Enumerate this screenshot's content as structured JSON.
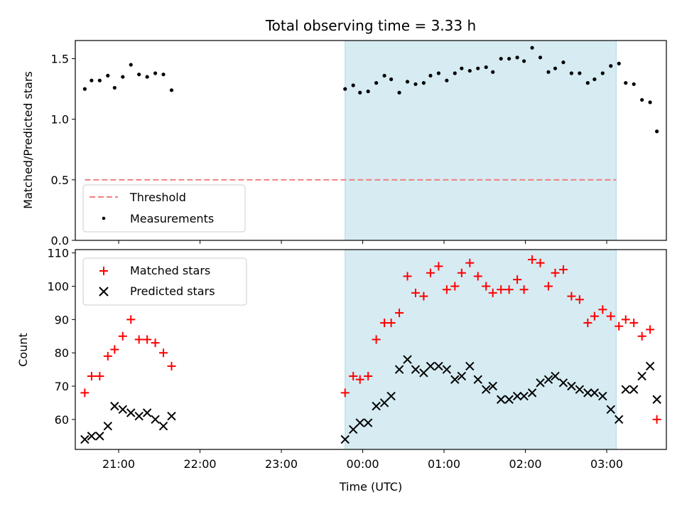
{
  "chart_data": [
    {
      "type": "scatter",
      "title": "Total observing time = 3.33 h",
      "ylabel": "Matched/Predicted stars",
      "xlabel": "",
      "ylim": [
        0.0,
        1.65
      ],
      "yticks": [
        "0.0",
        "0.5",
        "1.0",
        "1.5"
      ],
      "ytick_values": [
        0.0,
        0.5,
        1.0,
        1.5
      ],
      "shaded_interval": {
        "start": "23:47",
        "end": "03:07",
        "color": "#add8e6"
      },
      "grid": false,
      "legend_position": "lower-left",
      "series": [
        {
          "name": "Threshold",
          "style": "dashed-line",
          "color": "#f08080",
          "points": [
            [
              "20:35",
              0.5
            ],
            [
              "03:07",
              0.5
            ]
          ]
        },
        {
          "name": "Measurements",
          "style": "dot",
          "color": "#000000",
          "points": [
            [
              "20:35",
              1.25
            ],
            [
              "20:40",
              1.32
            ],
            [
              "20:46",
              1.32
            ],
            [
              "20:52",
              1.36
            ],
            [
              "20:57",
              1.26
            ],
            [
              "21:03",
              1.35
            ],
            [
              "21:09",
              1.45
            ],
            [
              "21:15",
              1.37
            ],
            [
              "21:21",
              1.35
            ],
            [
              "21:27",
              1.38
            ],
            [
              "21:33",
              1.37
            ],
            [
              "21:39",
              1.24
            ],
            [
              "23:47",
              1.25
            ],
            [
              "23:53",
              1.28
            ],
            [
              "23:58",
              1.22
            ],
            [
              "00:04",
              1.23
            ],
            [
              "00:10",
              1.3
            ],
            [
              "00:16",
              1.36
            ],
            [
              "00:21",
              1.33
            ],
            [
              "00:27",
              1.22
            ],
            [
              "00:33",
              1.31
            ],
            [
              "00:39",
              1.29
            ],
            [
              "00:45",
              1.3
            ],
            [
              "00:50",
              1.36
            ],
            [
              "00:56",
              1.38
            ],
            [
              "01:02",
              1.32
            ],
            [
              "01:08",
              1.38
            ],
            [
              "01:13",
              1.42
            ],
            [
              "01:19",
              1.4
            ],
            [
              "01:25",
              1.42
            ],
            [
              "01:31",
              1.43
            ],
            [
              "01:36",
              1.39
            ],
            [
              "01:42",
              1.5
            ],
            [
              "01:48",
              1.5
            ],
            [
              "01:54",
              1.51
            ],
            [
              "01:59",
              1.48
            ],
            [
              "02:05",
              1.59
            ],
            [
              "02:11",
              1.51
            ],
            [
              "02:17",
              1.39
            ],
            [
              "02:22",
              1.42
            ],
            [
              "02:28",
              1.47
            ],
            [
              "02:34",
              1.38
            ],
            [
              "02:40",
              1.38
            ],
            [
              "02:46",
              1.3
            ],
            [
              "02:51",
              1.33
            ],
            [
              "02:57",
              1.38
            ],
            [
              "03:03",
              1.44
            ],
            [
              "03:09",
              1.46
            ],
            [
              "03:14",
              1.3
            ],
            [
              "03:20",
              1.29
            ],
            [
              "03:26",
              1.16
            ],
            [
              "03:32",
              1.14
            ],
            [
              "03:37",
              0.9
            ]
          ]
        }
      ]
    },
    {
      "type": "scatter",
      "title": "",
      "ylabel": "Count",
      "xlabel": "Time (UTC)",
      "ylim": [
        51,
        111
      ],
      "yticks": [
        "60",
        "70",
        "80",
        "90",
        "100",
        "110"
      ],
      "ytick_values": [
        60,
        70,
        80,
        90,
        100,
        110
      ],
      "xticks": [
        "21:00",
        "22:00",
        "23:00",
        "00:00",
        "01:00",
        "02:00",
        "03:00"
      ],
      "shaded_interval": {
        "start": "23:47",
        "end": "03:07",
        "color": "#add8e6"
      },
      "grid": false,
      "legend_position": "upper-left",
      "series": [
        {
          "name": "Matched stars",
          "marker": "plus",
          "color": "#ff0000",
          "points": [
            [
              "20:35",
              68
            ],
            [
              "20:40",
              73
            ],
            [
              "20:46",
              73
            ],
            [
              "20:52",
              79
            ],
            [
              "20:57",
              81
            ],
            [
              "21:03",
              85
            ],
            [
              "21:09",
              90
            ],
            [
              "21:15",
              84
            ],
            [
              "21:21",
              84
            ],
            [
              "21:27",
              83
            ],
            [
              "21:33",
              80
            ],
            [
              "21:39",
              76
            ],
            [
              "23:47",
              68
            ],
            [
              "23:53",
              73
            ],
            [
              "23:58",
              72
            ],
            [
              "00:04",
              73
            ],
            [
              "00:10",
              84
            ],
            [
              "00:16",
              89
            ],
            [
              "00:21",
              89
            ],
            [
              "00:27",
              92
            ],
            [
              "00:33",
              103
            ],
            [
              "00:39",
              98
            ],
            [
              "00:45",
              97
            ],
            [
              "00:50",
              104
            ],
            [
              "00:56",
              106
            ],
            [
              "01:02",
              99
            ],
            [
              "01:08",
              100
            ],
            [
              "01:13",
              104
            ],
            [
              "01:19",
              107
            ],
            [
              "01:25",
              103
            ],
            [
              "01:31",
              100
            ],
            [
              "01:36",
              98
            ],
            [
              "01:42",
              99
            ],
            [
              "01:48",
              99
            ],
            [
              "01:54",
              102
            ],
            [
              "01:59",
              99
            ],
            [
              "02:05",
              108
            ],
            [
              "02:11",
              107
            ],
            [
              "02:17",
              100
            ],
            [
              "02:22",
              104
            ],
            [
              "02:28",
              105
            ],
            [
              "02:34",
              97
            ],
            [
              "02:40",
              96
            ],
            [
              "02:46",
              89
            ],
            [
              "02:51",
              91
            ],
            [
              "02:57",
              93
            ],
            [
              "03:03",
              91
            ],
            [
              "03:09",
              88
            ],
            [
              "03:14",
              90
            ],
            [
              "03:20",
              89
            ],
            [
              "03:26",
              85
            ],
            [
              "03:32",
              87
            ],
            [
              "03:37",
              60
            ]
          ]
        },
        {
          "name": "Predicted stars",
          "marker": "x",
          "color": "#000000",
          "points": [
            [
              "20:35",
              54
            ],
            [
              "20:40",
              55
            ],
            [
              "20:46",
              55
            ],
            [
              "20:52",
              58
            ],
            [
              "20:57",
              64
            ],
            [
              "21:03",
              63
            ],
            [
              "21:09",
              62
            ],
            [
              "21:15",
              61
            ],
            [
              "21:21",
              62
            ],
            [
              "21:27",
              60
            ],
            [
              "21:33",
              58
            ],
            [
              "21:39",
              61
            ],
            [
              "23:47",
              54
            ],
            [
              "23:53",
              57
            ],
            [
              "23:58",
              59
            ],
            [
              "00:04",
              59
            ],
            [
              "00:10",
              64
            ],
            [
              "00:16",
              65
            ],
            [
              "00:21",
              67
            ],
            [
              "00:27",
              75
            ],
            [
              "00:33",
              78
            ],
            [
              "00:39",
              75
            ],
            [
              "00:45",
              74
            ],
            [
              "00:50",
              76
            ],
            [
              "00:56",
              76
            ],
            [
              "01:02",
              75
            ],
            [
              "01:08",
              72
            ],
            [
              "01:13",
              73
            ],
            [
              "01:19",
              76
            ],
            [
              "01:25",
              72
            ],
            [
              "01:31",
              69
            ],
            [
              "01:36",
              70
            ],
            [
              "01:42",
              66
            ],
            [
              "01:48",
              66
            ],
            [
              "01:54",
              67
            ],
            [
              "01:59",
              67
            ],
            [
              "02:05",
              68
            ],
            [
              "02:11",
              71
            ],
            [
              "02:17",
              72
            ],
            [
              "02:22",
              73
            ],
            [
              "02:28",
              71
            ],
            [
              "02:34",
              70
            ],
            [
              "02:40",
              69
            ],
            [
              "02:46",
              68
            ],
            [
              "02:51",
              68
            ],
            [
              "02:57",
              67
            ],
            [
              "03:03",
              63
            ],
            [
              "03:09",
              60
            ],
            [
              "03:14",
              69
            ],
            [
              "03:20",
              69
            ],
            [
              "03:26",
              73
            ],
            [
              "03:32",
              76
            ],
            [
              "03:37",
              66
            ]
          ]
        }
      ]
    }
  ]
}
